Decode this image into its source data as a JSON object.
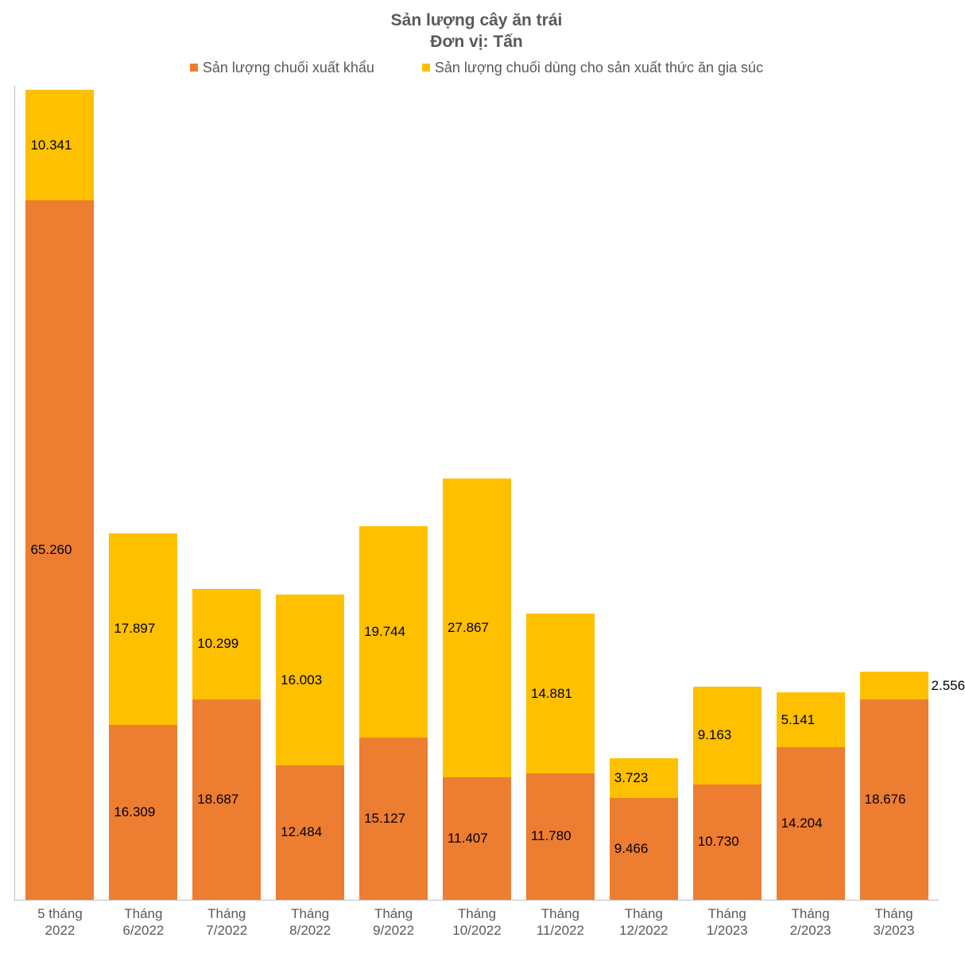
{
  "chart": {
    "type": "stacked-bar",
    "title_line1": "Sản lượng cây ăn trái",
    "title_line2": "Đơn vị: Tấn",
    "title_fontsize": 21,
    "title_color": "#595959",
    "legend": {
      "series1": {
        "label": "Sản lượng chuối xuất khẩu",
        "color": "#ed7d31"
      },
      "series2": {
        "label": "Sản lượng chuối dùng cho sản xuất thức ăn gia súc",
        "color": "#ffc000"
      }
    },
    "axis_color": "#bfbfbf",
    "label_color": "#595959",
    "label_fontsize": 17,
    "background_color": "#ffffff",
    "y_max": 76000,
    "bar_width_pct": 82,
    "locale_thousands": ".",
    "categories": [
      {
        "line1": "5 tháng",
        "line2": "2022",
        "s1": 65260,
        "s2": 10341,
        "s2_label_outside": false
      },
      {
        "line1": "Tháng",
        "line2": "6/2022",
        "s1": 16309,
        "s2": 17897,
        "s2_label_outside": false
      },
      {
        "line1": "Tháng",
        "line2": "7/2022",
        "s1": 18687,
        "s2": 10299,
        "s2_label_outside": false
      },
      {
        "line1": "Tháng",
        "line2": "8/2022",
        "s1": 12484,
        "s2": 16003,
        "s2_label_outside": false
      },
      {
        "line1": "Tháng",
        "line2": "9/2022",
        "s1": 15127,
        "s2": 19744,
        "s2_label_outside": false
      },
      {
        "line1": "Tháng",
        "line2": "10/2022",
        "s1": 11407,
        "s2": 27867,
        "s2_label_outside": false
      },
      {
        "line1": "Tháng",
        "line2": "11/2022",
        "s1": 11780,
        "s2": 14881,
        "s2_label_outside": false
      },
      {
        "line1": "Tháng",
        "line2": "12/2022",
        "s1": 9466,
        "s2": 3723,
        "s2_label_outside": false
      },
      {
        "line1": "Tháng",
        "line2": "1/2023",
        "s1": 10730,
        "s2": 9163,
        "s2_label_outside": false
      },
      {
        "line1": "Tháng",
        "line2": "2/2023",
        "s1": 14204,
        "s2": 5141,
        "s2_label_outside": false
      },
      {
        "line1": "Tháng",
        "line2": "3/2023",
        "s1": 18676,
        "s2": 2556,
        "s2_label_outside": true
      }
    ]
  }
}
